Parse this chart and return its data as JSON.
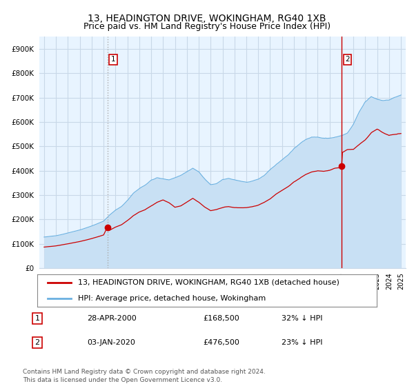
{
  "title": "13, HEADINGTON DRIVE, WOKINGHAM, RG40 1XB",
  "subtitle": "Price paid vs. HM Land Registry's House Price Index (HPI)",
  "ylim": [
    0,
    950000
  ],
  "yticks": [
    0,
    100000,
    200000,
    300000,
    400000,
    500000,
    600000,
    700000,
    800000,
    900000
  ],
  "ytick_labels": [
    "£0",
    "£100K",
    "£200K",
    "£300K",
    "£400K",
    "£500K",
    "£600K",
    "£700K",
    "£800K",
    "£900K"
  ],
  "background_color": "#ffffff",
  "plot_bg_color": "#e8f4ff",
  "grid_color": "#c8d8e8",
  "hpi_color": "#6ab0e0",
  "hpi_fill_color": "#c8e0f4",
  "price_color": "#cc0000",
  "sale1_year": 2000.32,
  "sale1_price": 168500,
  "sale2_year": 2020.01,
  "sale2_price": 476500,
  "legend_house": "13, HEADINGTON DRIVE, WOKINGHAM, RG40 1XB (detached house)",
  "legend_hpi": "HPI: Average price, detached house, Wokingham",
  "note1_num": "1",
  "note1_date": "28-APR-2000",
  "note1_price": "£168,500",
  "note1_pct": "32% ↓ HPI",
  "note2_num": "2",
  "note2_date": "03-JAN-2020",
  "note2_price": "£476,500",
  "note2_pct": "23% ↓ HPI",
  "footer": "Contains HM Land Registry data © Crown copyright and database right 2024.\nThis data is licensed under the Open Government Licence v3.0.",
  "title_fontsize": 10,
  "subtitle_fontsize": 9,
  "tick_fontsize": 7.5,
  "legend_fontsize": 8,
  "note_fontsize": 8,
  "footer_fontsize": 6.5
}
